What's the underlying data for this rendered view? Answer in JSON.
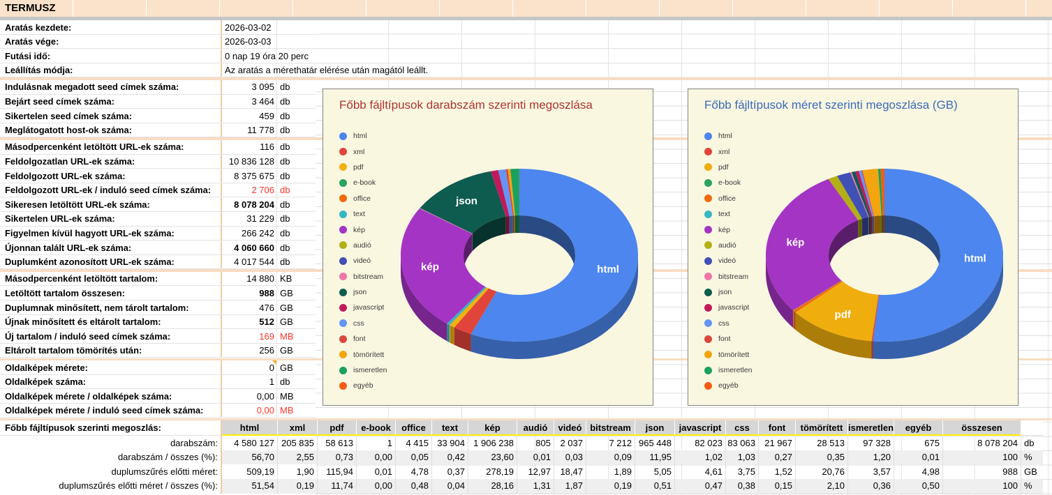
{
  "window_title": "TERMUSZ",
  "stats": {
    "groups": [
      {
        "rows": [
          {
            "label": "Aratás kezdete:",
            "value": "2026-03-02",
            "unit": "",
            "left": true
          },
          {
            "label": "Aratás vége:",
            "value": "2026-03-03",
            "unit": "",
            "left": true
          },
          {
            "label": "Futási idő:",
            "value": "0 nap 19 óra 20 perc",
            "unit": "",
            "left": true
          },
          {
            "label": "Leállítás módja:",
            "value": "Az aratás a mérethatár elérése után magától leállt.",
            "unit": "",
            "left": true
          }
        ]
      },
      {
        "rows": [
          {
            "label": "Indulásnak megadott seed címek száma:",
            "value": "3 095",
            "unit": "db"
          },
          {
            "label": "Bejárt seed címek száma:",
            "value": "3 464",
            "unit": "db"
          },
          {
            "label": "Sikertelen seed címek száma:",
            "value": "459",
            "unit": "db"
          },
          {
            "label": "Meglátogatott host-ok száma:",
            "value": "11 778",
            "unit": "db"
          }
        ]
      },
      {
        "rows": [
          {
            "label": "Másodpercenként letöltött URL-ek száma:",
            "value": "116",
            "unit": "db"
          },
          {
            "label": "Feldolgozatlan URL-ek száma:",
            "value": "10 836 128",
            "unit": "db"
          },
          {
            "label": "Feldolgozott URL-ek száma:",
            "value": "8 375 675",
            "unit": "db"
          },
          {
            "label": "Feldolgozott URL-ek / induló seed címek száma:",
            "value": "2 706",
            "unit": "db",
            "red": true
          },
          {
            "label": "Sikeresen letöltött URL-ek száma:",
            "value": "8 078 204",
            "unit": "db",
            "bold": true
          },
          {
            "label": "Sikertelen URL-ek száma:",
            "value": "31 229",
            "unit": "db"
          },
          {
            "label": "Figyelmen kívül hagyott URL-ek száma:",
            "value": "266 242",
            "unit": "db"
          },
          {
            "label": "Újonnan talált URL-ek száma:",
            "value": "4 060 660",
            "unit": "db",
            "bold": true
          },
          {
            "label": "Duplumként azonosított URL-ek száma:",
            "value": "4 017 544",
            "unit": "db"
          }
        ]
      },
      {
        "rows": [
          {
            "label": "Másodpercenként letöltött tartalom:",
            "value": "14 880",
            "unit": "KB"
          },
          {
            "label": "Letöltött tartalom összesen:",
            "value": "988",
            "unit": "GB",
            "bold": true
          },
          {
            "label": "Duplumnak minősített, nem tárolt tartalom:",
            "value": "476",
            "unit": "GB"
          },
          {
            "label": "Újnak minősített és eltárolt tartalom:",
            "value": "512",
            "unit": "GB",
            "bold": true
          },
          {
            "label": "Új tartalom / induló seed címek száma:",
            "value": "169",
            "unit": "MB",
            "red": true
          },
          {
            "label": "Eltárolt tartalom tömörítés után:",
            "value": "256",
            "unit": "GB"
          }
        ]
      },
      {
        "rows": [
          {
            "label": "Oldalképek mérete:",
            "value": "0",
            "unit": "GB",
            "note": true
          },
          {
            "label": "Oldalképek száma:",
            "value": "1",
            "unit": "db"
          },
          {
            "label": "Oldalképek mérete  / oldalképek száma:",
            "value": "0,00",
            "unit": "MB"
          },
          {
            "label": "Oldalképek mérete  / induló seed címek száma:",
            "value": "0,00",
            "unit": "MB",
            "red": true
          }
        ]
      }
    ]
  },
  "chart_data": [
    {
      "type": "pie",
      "subtype": "donut-3d",
      "title": "Főbb fájltípusok darabszám szerinti megoszlása",
      "title_color": "#ac3432",
      "unit": "%",
      "legend_position": "left",
      "categories": [
        "html",
        "xml",
        "pdf",
        "e-book",
        "office",
        "text",
        "kép",
        "audió",
        "videó",
        "bitstream",
        "json",
        "javascript",
        "css",
        "font",
        "tömörített",
        "ismeretlen",
        "egyéb"
      ],
      "values": [
        56.7,
        2.55,
        0.73,
        0.0,
        0.05,
        0.42,
        23.6,
        0.01,
        0.03,
        0.09,
        11.95,
        1.02,
        1.03,
        0.27,
        0.35,
        1.2,
        0.01
      ],
      "colors": [
        "#4c86ee",
        "#e0443a",
        "#f2b10d",
        "#28a45c",
        "#f2690d",
        "#35b8c2",
        "#a434c3",
        "#b3af16",
        "#4050b5",
        "#f075a8",
        "#0e5b50",
        "#c01a5b",
        "#6495f5",
        "#d9483b",
        "#f2a50f",
        "#1ba05e",
        "#f55b14"
      ],
      "labeled_slices": [
        "html",
        "kép",
        "json"
      ]
    },
    {
      "type": "pie",
      "subtype": "donut-3d",
      "title": "Főbb fájltípusok méret szerinti megoszlása (GB)",
      "title_color": "#3a6ab8",
      "unit": "%",
      "legend_position": "left",
      "categories": [
        "html",
        "xml",
        "pdf",
        "e-book",
        "office",
        "text",
        "kép",
        "audió",
        "videó",
        "bitstream",
        "json",
        "javascript",
        "css",
        "font",
        "tömörített",
        "ismeretlen",
        "egyéb"
      ],
      "values": [
        51.54,
        0.19,
        11.74,
        0.0,
        0.48,
        0.04,
        28.16,
        1.31,
        1.87,
        0.19,
        0.51,
        0.47,
        0.38,
        0.15,
        2.1,
        0.36,
        0.5
      ],
      "colors": [
        "#4c86ee",
        "#e0443a",
        "#f0ad0e",
        "#28a45c",
        "#f2690d",
        "#35b8c2",
        "#a434c3",
        "#b3af16",
        "#4050b5",
        "#f075a8",
        "#0e5b50",
        "#c01a5b",
        "#6495f5",
        "#d9483b",
        "#f2a50f",
        "#1ba05e",
        "#f55b14"
      ],
      "labeled_slices": [
        "html",
        "pdf",
        "kép"
      ]
    }
  ],
  "bottom_table": {
    "title": "Főbb fájltípusok szerinti megoszlás:",
    "columns": [
      "html",
      "xml",
      "pdf",
      "e-book",
      "office",
      "text",
      "kép",
      "audió",
      "videó",
      "bitstream",
      "json",
      "javascript",
      "css",
      "font",
      "tömörített",
      "ismeretlen",
      "egyéb",
      "összesen"
    ],
    "rows": [
      {
        "label": "darabszám:",
        "unit": "db",
        "values": [
          "4 580 127",
          "205 835",
          "58 613",
          "1",
          "4 415",
          "33 904",
          "1 906 238",
          "805",
          "2 037",
          "7 212",
          "965 448",
          "82 023",
          "83 063",
          "21 967",
          "28 513",
          "97 328",
          "675",
          "8 078 204"
        ]
      },
      {
        "label": "darabszám / összes (%):",
        "unit": "%",
        "values": [
          "56,70",
          "2,55",
          "0,73",
          "0,00",
          "0,05",
          "0,42",
          "23,60",
          "0,01",
          "0,03",
          "0,09",
          "11,95",
          "1,02",
          "1,03",
          "0,27",
          "0,35",
          "1,20",
          "0,01",
          "100"
        ]
      },
      {
        "label": "duplumszűrés előtti méret:",
        "unit": "GB",
        "values": [
          "509,19",
          "1,90",
          "115,94",
          "0,01",
          "4,78",
          "0,37",
          "278,19",
          "12,97",
          "18,47",
          "1,89",
          "5,05",
          "4,61",
          "3,75",
          "1,52",
          "20,76",
          "3,57",
          "4,98",
          "988"
        ]
      },
      {
        "label": "duplumszűrés előtti méret / összes (%):",
        "unit": "%",
        "values": [
          "51,54",
          "0,19",
          "11,74",
          "0,00",
          "0,48",
          "0,04",
          "28,16",
          "1,31",
          "1,87",
          "0,19",
          "0,51",
          "0,47",
          "0,38",
          "0,15",
          "2,10",
          "0,36",
          "0,50",
          "100"
        ]
      }
    ]
  },
  "colors": {
    "header_bg": "#fbe3cb",
    "separator": "#f8dcc2",
    "table_header_bg": "#d6d6d6",
    "table_header_underline": "#ffee00",
    "alt_row_bg": "#efefef",
    "chart_panel_bg": "#faf7e1",
    "red_value": "#f5352b",
    "comment_marker": "#ffa726"
  }
}
